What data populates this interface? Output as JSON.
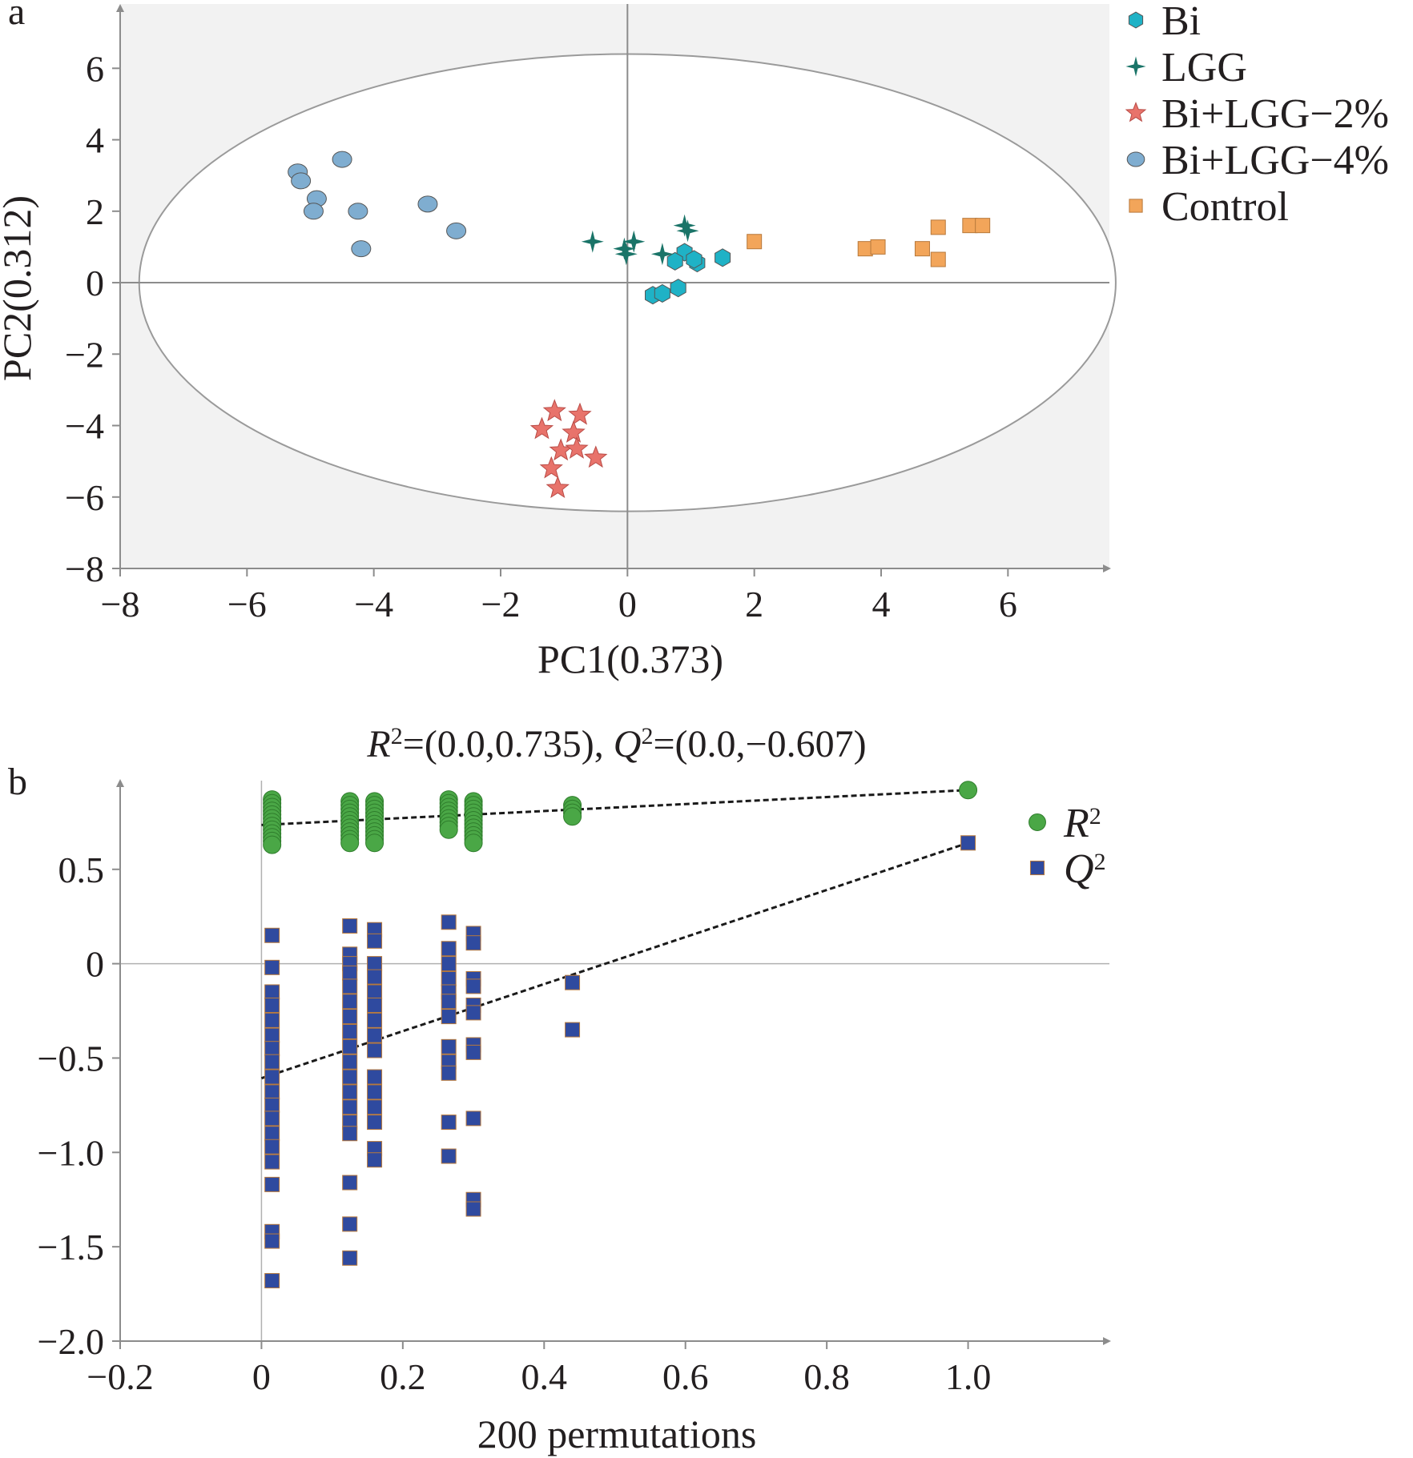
{
  "chart_data": [
    {
      "panel_label": "a",
      "type": "scatter",
      "xlabel": "PC1(0.373)",
      "ylabel": "PC2(0.312)",
      "xlim": [
        -8,
        7.6
      ],
      "ylim": [
        -8,
        7.8
      ],
      "xticks": [
        -8,
        -6,
        -4,
        -2,
        0,
        2,
        4,
        6
      ],
      "yticks": [
        -8,
        -6,
        -4,
        -2,
        0,
        2,
        4,
        6
      ],
      "xtick_labels": [
        "−8",
        "−6",
        "−4",
        "−2",
        "0",
        "2",
        "4",
        "6"
      ],
      "ytick_labels": [
        "−8",
        "−6",
        "−4",
        "−2",
        "0",
        "2",
        "4",
        "6"
      ],
      "legend_position": "outside-top-right",
      "ellipse": {
        "center": [
          0,
          0
        ],
        "rx": 7.7,
        "ry": 6.4
      },
      "series": [
        {
          "name": "Bi",
          "marker": "hexagon",
          "color": "#1fb2c6",
          "points": [
            [
              0.9,
              0.85
            ],
            [
              0.75,
              0.6
            ],
            [
              1.1,
              0.55
            ],
            [
              1.5,
              0.7
            ],
            [
              0.4,
              -0.35
            ],
            [
              0.55,
              -0.3
            ],
            [
              0.8,
              -0.15
            ],
            [
              1.05,
              0.65
            ]
          ]
        },
        {
          "name": "LGG",
          "marker": "star4",
          "color": "#1a7468",
          "points": [
            [
              -0.55,
              1.15
            ],
            [
              -0.05,
              0.95
            ],
            [
              0.1,
              1.15
            ],
            [
              -0.02,
              0.8
            ],
            [
              0.55,
              0.8
            ],
            [
              0.9,
              1.6
            ],
            [
              0.95,
              1.45
            ]
          ]
        },
        {
          "name": "Bi+LGG−2%",
          "marker": "star5",
          "color": "#e8736b",
          "points": [
            [
              -1.15,
              -3.6
            ],
            [
              -0.75,
              -3.7
            ],
            [
              -1.35,
              -4.1
            ],
            [
              -0.85,
              -4.2
            ],
            [
              -1.05,
              -4.7
            ],
            [
              -0.8,
              -4.65
            ],
            [
              -0.5,
              -4.9
            ],
            [
              -1.2,
              -5.2
            ],
            [
              -1.1,
              -5.75
            ]
          ]
        },
        {
          "name": "Bi+LGG−4%",
          "marker": "ellipse",
          "color": "#7fadd0",
          "points": [
            [
              -5.2,
              3.1
            ],
            [
              -5.15,
              2.85
            ],
            [
              -4.5,
              3.45
            ],
            [
              -4.9,
              2.35
            ],
            [
              -4.95,
              2.0
            ],
            [
              -4.25,
              2.0
            ],
            [
              -3.15,
              2.2
            ],
            [
              -2.7,
              1.45
            ],
            [
              -4.2,
              0.95
            ]
          ]
        },
        {
          "name": "Control",
          "marker": "square",
          "color": "#f2a55a",
          "points": [
            [
              2.0,
              1.15
            ],
            [
              3.75,
              0.95
            ],
            [
              3.95,
              1.0
            ],
            [
              4.65,
              0.95
            ],
            [
              4.9,
              1.55
            ],
            [
              4.9,
              0.65
            ],
            [
              5.4,
              1.6
            ],
            [
              5.6,
              1.6
            ]
          ]
        }
      ]
    },
    {
      "panel_label": "b",
      "type": "scatter",
      "title_parts": [
        "R",
        "2",
        "=(0.0,0.735), ",
        "Q",
        "2",
        "=(0.0,−0.607)"
      ],
      "xlabel": "200 permutations",
      "ylabel": "",
      "xlim": [
        -0.2,
        1.2
      ],
      "ylim": [
        -2.0,
        0.97
      ],
      "xticks": [
        -0.2,
        0,
        0.2,
        0.4,
        0.6,
        0.8,
        1.0
      ],
      "yticks": [
        -2.0,
        -1.5,
        -1.0,
        -0.5,
        0,
        0.5
      ],
      "xtick_labels": [
        "−0.2",
        "0",
        "0.2",
        "0.4",
        "0.6",
        "0.8",
        "1.0"
      ],
      "ytick_labels": [
        "−2.0",
        "−1.5",
        "−1.0",
        "−0.5",
        "0",
        "0.5"
      ],
      "legend_position": "top-right",
      "series": [
        {
          "name": "R",
          "name_sup": "2",
          "marker": "circle",
          "color": "#4aa746",
          "x_groups": [
            {
              "x": 0.015,
              "values": [
                0.87,
                0.85,
                0.83,
                0.81,
                0.79,
                0.77,
                0.75,
                0.73,
                0.71,
                0.69,
                0.67,
                0.65,
                0.63
              ]
            },
            {
              "x": 0.125,
              "values": [
                0.86,
                0.84,
                0.82,
                0.8,
                0.78,
                0.76,
                0.74,
                0.72,
                0.7,
                0.68,
                0.66,
                0.64
              ]
            },
            {
              "x": 0.16,
              "values": [
                0.86,
                0.84,
                0.82,
                0.8,
                0.78,
                0.76,
                0.74,
                0.72,
                0.7,
                0.68,
                0.66,
                0.64
              ]
            },
            {
              "x": 0.265,
              "values": [
                0.87,
                0.85,
                0.83,
                0.81,
                0.79,
                0.77,
                0.75,
                0.73,
                0.71
              ]
            },
            {
              "x": 0.3,
              "values": [
                0.86,
                0.84,
                0.82,
                0.8,
                0.78,
                0.76,
                0.74,
                0.72,
                0.7,
                0.68,
                0.66,
                0.64
              ]
            },
            {
              "x": 0.44,
              "values": [
                0.84,
                0.82,
                0.8,
                0.78
              ]
            },
            {
              "x": 1.0,
              "values": [
                0.92
              ]
            }
          ],
          "regression": {
            "x": [
              0.0,
              1.0
            ],
            "y": [
              0.735,
              0.92
            ]
          }
        },
        {
          "name": "Q",
          "name_sup": "2",
          "marker": "square",
          "color": "#2f4a9f",
          "x_groups": [
            {
              "x": 0.015,
              "values": [
                0.15,
                -0.02,
                -0.15,
                -0.22,
                -0.3,
                -0.38,
                -0.45,
                -0.52,
                -0.6,
                -0.68,
                -0.75,
                -0.82,
                -0.9,
                -0.97,
                -1.05,
                -1.17,
                -1.42,
                -1.47,
                -1.68
              ]
            },
            {
              "x": 0.125,
              "values": [
                0.2,
                0.05,
                0.0,
                -0.05,
                -0.12,
                -0.2,
                -0.28,
                -0.36,
                -0.44,
                -0.52,
                -0.6,
                -0.68,
                -0.76,
                -0.84,
                -0.9,
                -1.16,
                -1.38,
                -1.56
              ]
            },
            {
              "x": 0.16,
              "values": [
                0.18,
                0.12,
                0.0,
                -0.07,
                -0.15,
                -0.22,
                -0.3,
                -0.38,
                -0.46,
                -0.6,
                -0.68,
                -0.76,
                -0.84,
                -0.98,
                -1.04
              ]
            },
            {
              "x": 0.265,
              "values": [
                0.22,
                0.08,
                0.0,
                -0.08,
                -0.15,
                -0.2,
                -0.28,
                -0.44,
                -0.52,
                -0.58,
                -0.84,
                -1.02
              ]
            },
            {
              "x": 0.3,
              "values": [
                0.16,
                0.11,
                -0.08,
                -0.12,
                -0.22,
                -0.26,
                -0.43,
                -0.47,
                -0.82,
                -1.25,
                -1.3
              ]
            },
            {
              "x": 0.44,
              "values": [
                -0.1,
                -0.35
              ]
            },
            {
              "x": 1.0,
              "values": [
                0.64
              ]
            }
          ],
          "regression": {
            "x": [
              0.0,
              1.0
            ],
            "y": [
              -0.607,
              0.64
            ]
          }
        }
      ]
    }
  ],
  "colors": {
    "axis": "#8c8c8c",
    "plot_bg": "#f2f2f2",
    "text": "#231f20",
    "regression": "#1a1a1a"
  }
}
